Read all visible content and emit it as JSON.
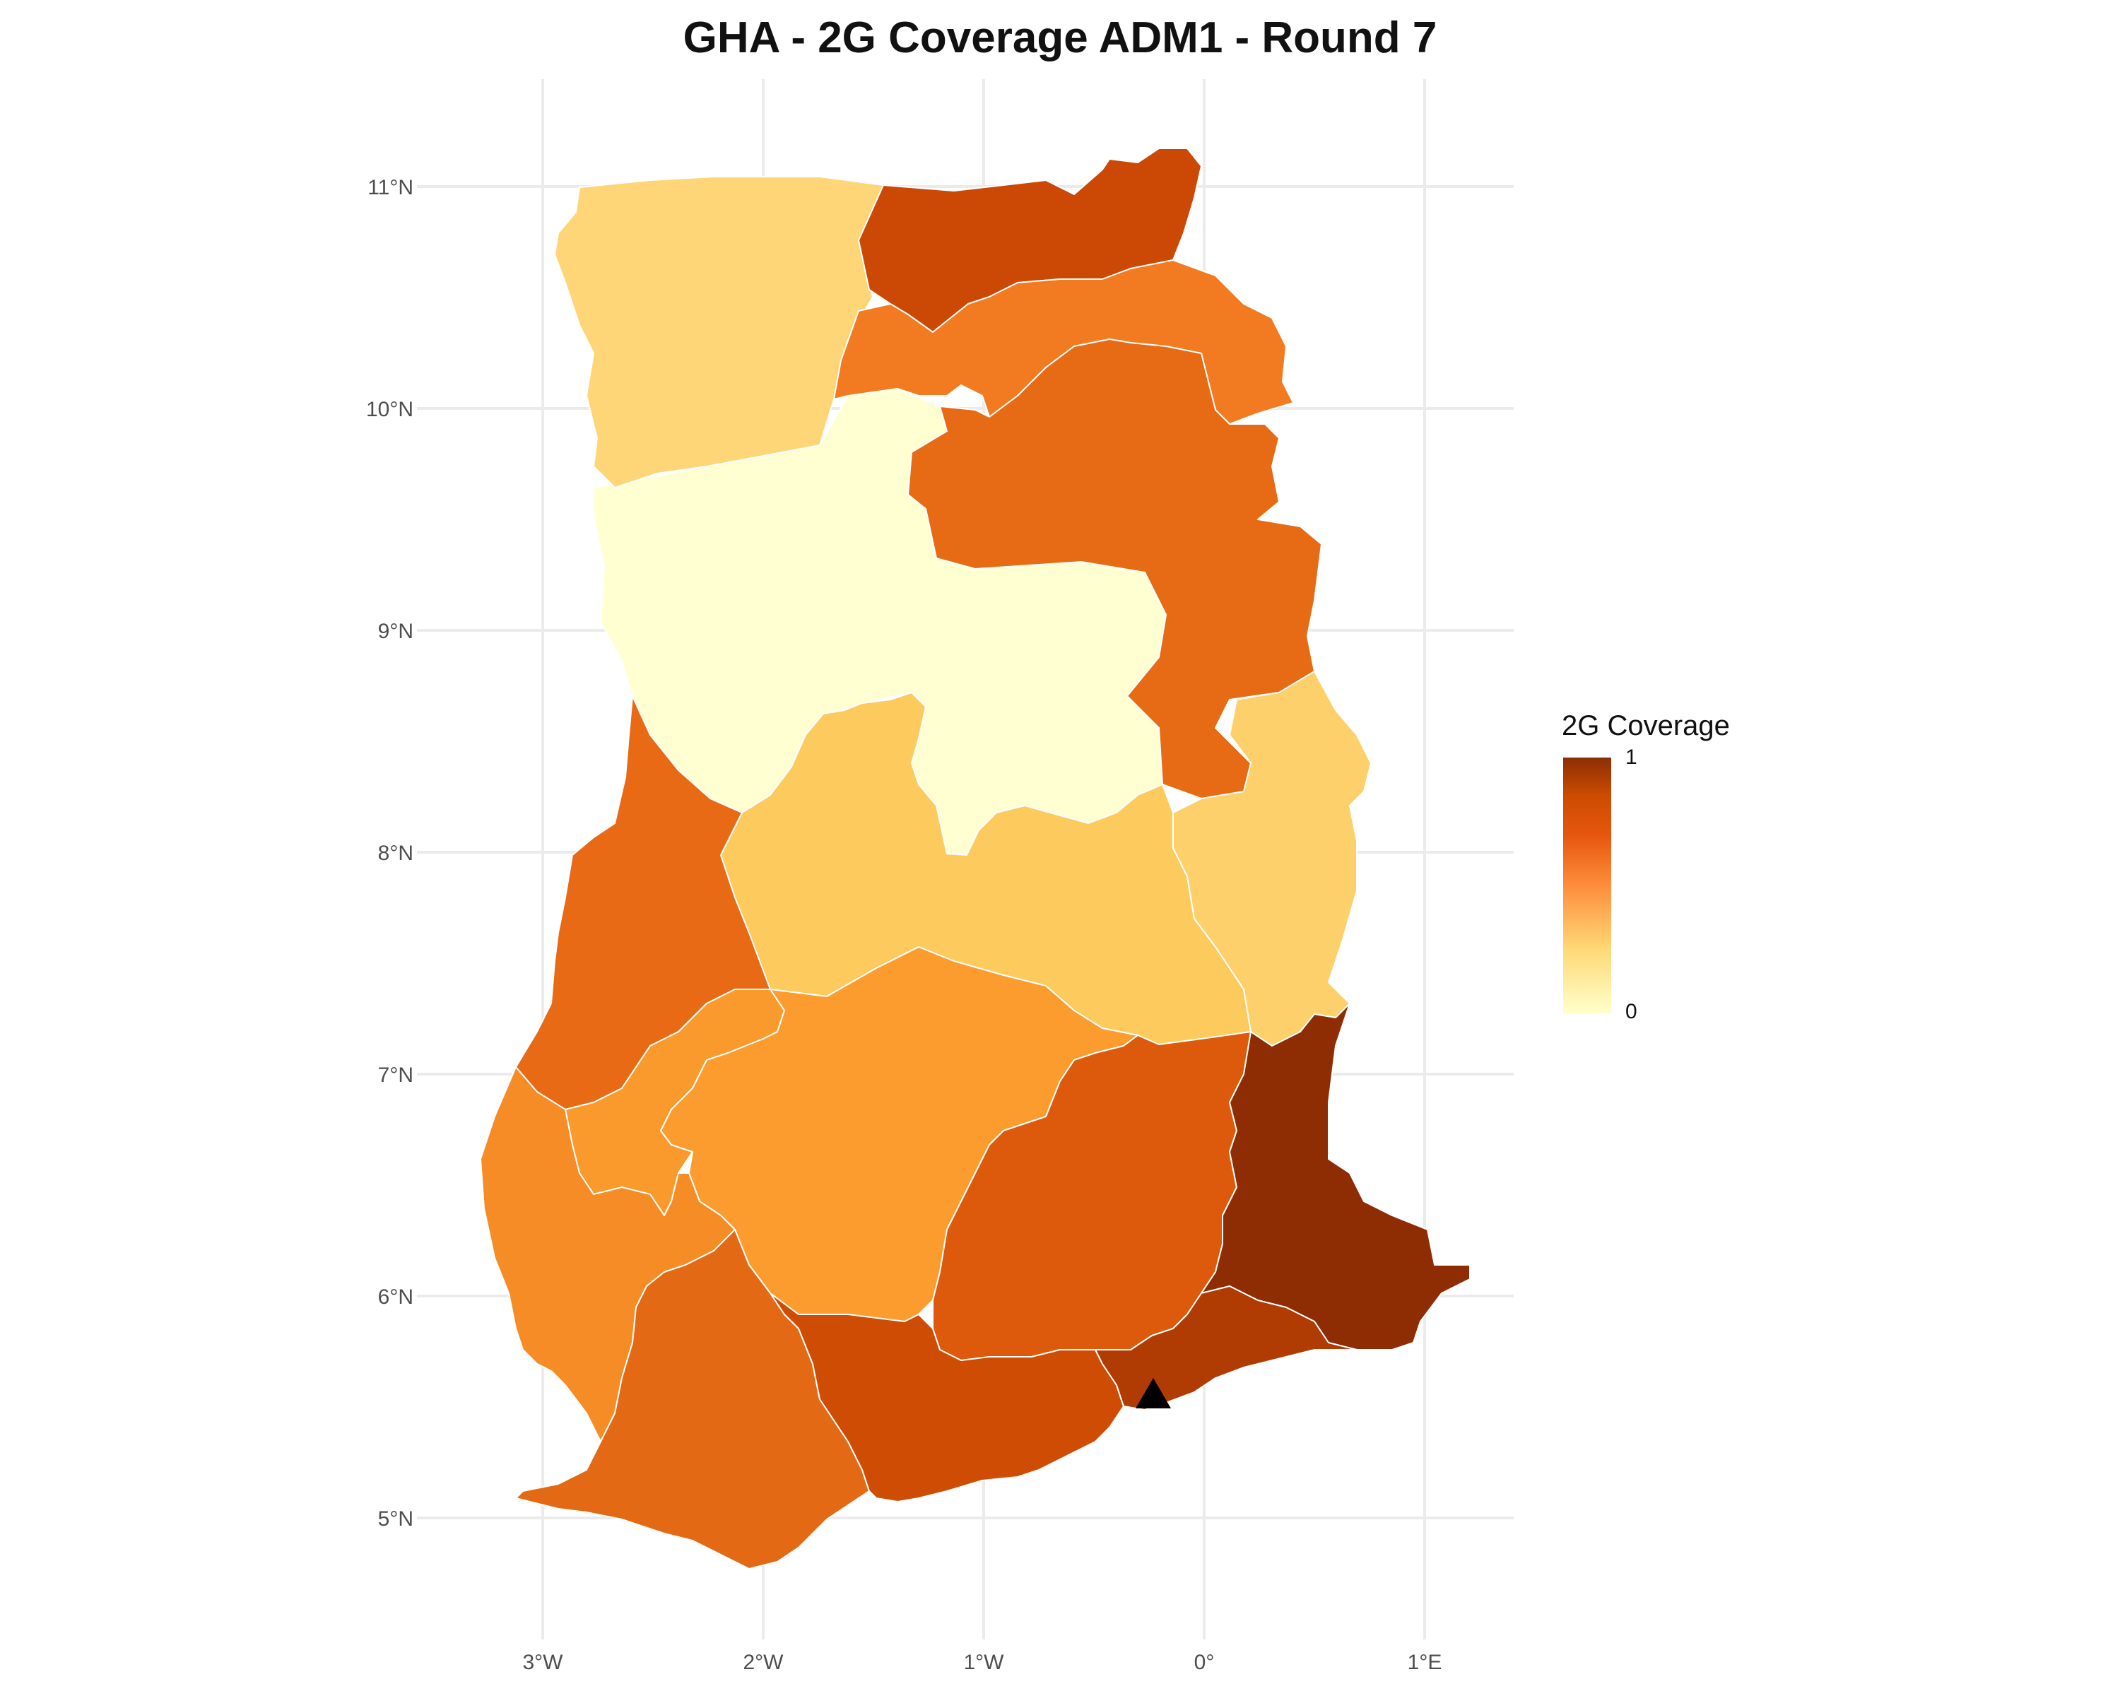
{
  "title": "GHA - 2G Coverage ADM1 - Round 7",
  "axes": {
    "lon_ticks": [
      "3°W",
      "2°W",
      "1°W",
      "0°",
      "1°E"
    ],
    "lat_ticks": [
      "11°N",
      "10°N",
      "9°N",
      "8°N",
      "7°N",
      "6°N",
      "5°N"
    ],
    "grid": true
  },
  "legend": {
    "title": "2G Coverage",
    "max_label": "1",
    "min_label": "0",
    "placement": "right",
    "palette": [
      "#ffffcc",
      "#fed976",
      "#fd8d3c",
      "#e6550d",
      "#cc4c02",
      "#8c2d04"
    ]
  },
  "regions": [
    {
      "key": "upper-west",
      "fill": "#fed677"
    },
    {
      "key": "upper-east",
      "fill": "#cb4904"
    },
    {
      "key": "north-east",
      "fill": "#f27a20"
    },
    {
      "key": "northern",
      "fill": "#e76a14"
    },
    {
      "key": "savannah",
      "fill": "#ffffd2"
    },
    {
      "key": "bono-east",
      "fill": "#fdca5e"
    },
    {
      "key": "oti",
      "fill": "#fdd06b"
    },
    {
      "key": "bono",
      "fill": "#e86a15"
    },
    {
      "key": "ahafo",
      "fill": "#fa9a2c"
    },
    {
      "key": "ashanti",
      "fill": "#fd9c2e"
    },
    {
      "key": "eastern",
      "fill": "#dd5a0c"
    },
    {
      "key": "volta",
      "fill": "#8e2d04"
    },
    {
      "key": "western-north",
      "fill": "#f58c26"
    },
    {
      "key": "western",
      "fill": "#e46914"
    },
    {
      "key": "central",
      "fill": "#cf4c05"
    },
    {
      "key": "greater-accra",
      "fill": "#b03c04"
    }
  ],
  "marker": {
    "shape": "triangle",
    "symbol": "capital-marker",
    "color": "#000000"
  }
}
